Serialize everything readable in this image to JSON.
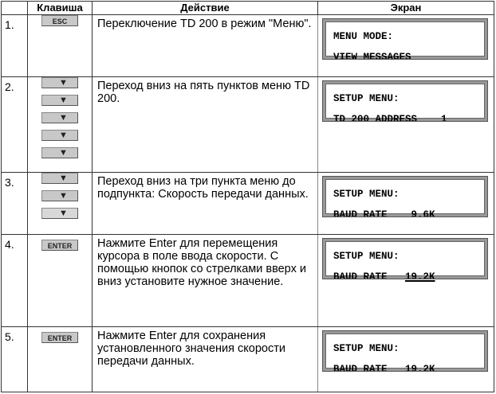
{
  "headers": [
    "",
    "Клавиша",
    "Действие",
    "Экран"
  ],
  "rows": [
    {
      "num": "1.",
      "keys": [
        "ESC"
      ],
      "action": "Переключение TD 200 в режим \"Меню\".",
      "screen": {
        "line1": "MENU MODE:",
        "line2a": "VIEW MESSAGES",
        "line2b": ""
      }
    },
    {
      "num": "2.",
      "keys": [
        "down-arrow",
        "down-arrow",
        "down-arrow",
        "down-arrow",
        "down-arrow"
      ],
      "action": "Переход вниз на пять пунктов меню TD 200.",
      "screen": {
        "line1": "SETUP MENU:",
        "line2a": "TD 200 ADDRESS    ",
        "line2b": "1"
      }
    },
    {
      "num": "3.",
      "keys": [
        "down-arrow",
        "down-arrow",
        "down-arrow"
      ],
      "action": "Переход вниз на три пункта меню до подпункта: Скорость передачи данных.",
      "screen": {
        "line1": "SETUP MENU:",
        "line2a": "BAUD RATE    ",
        "line2b": "9.6K"
      }
    },
    {
      "num": "4.",
      "keys": [
        "ENTER"
      ],
      "action": "Нажмите Enter для перемещения курсора в поле ввода скорости. С помощью кнопок со стрелками вверх и вниз установите нужное значение.",
      "screen": {
        "line1": "SETUP MENU:",
        "line2a": "BAUD RATE   ",
        "line2b": "19.2K"
      }
    },
    {
      "num": "5.",
      "keys": [
        "ENTER"
      ],
      "action": "Нажмите Enter для сохранения установленного значения скорости передачи данных.",
      "screen": {
        "line1": "SETUP MENU:",
        "line2a": "BAUD RATE   ",
        "line2b": "19.2K"
      }
    }
  ]
}
